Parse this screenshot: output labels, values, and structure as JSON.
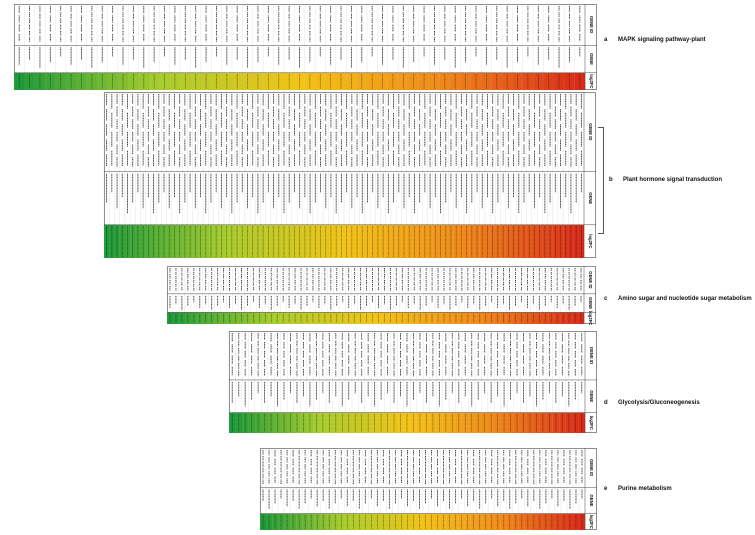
{
  "chart_data": [
    {
      "type": "heatmap",
      "panel_letter": "a",
      "title": "MAPK signaling pathway-plant",
      "columns": [
        "GENE ID",
        "GENE",
        "log2FC"
      ],
      "rows": 55,
      "colorscale": [
        "#1f9a3a",
        "#a8cc2e",
        "#f2c418",
        "#f08a1c",
        "#d92b1a"
      ],
      "log2fc_range": [
        0.2,
        3.0
      ]
    },
    {
      "type": "heatmap",
      "panel_letter": "b",
      "title": "Plant hormone signal transduction",
      "columns": [
        "GENE ID",
        "GENE",
        "log2FC"
      ],
      "rows": 92,
      "colorscale": [
        "#1f9a3a",
        "#a8cc2e",
        "#f2c418",
        "#f08a1c",
        "#d92b1a"
      ],
      "log2fc_range": [
        0.2,
        3.2
      ]
    },
    {
      "type": "heatmap",
      "panel_letter": "c",
      "title": "Amino sugar and nucleotide sugar metabolism",
      "columns": [
        "GENE ID",
        "GENE",
        "log2FC"
      ],
      "rows": 70,
      "colorscale": [
        "#1f9a3a",
        "#a8cc2e",
        "#f2c418",
        "#f08a1c",
        "#d92b1a"
      ],
      "log2fc_range": [
        0.2,
        3.1
      ]
    },
    {
      "type": "heatmap",
      "panel_letter": "d",
      "title": "Glycolysis/Gluconeogenesis",
      "columns": [
        "GENE ID",
        "GENE",
        "log2FC"
      ],
      "rows": 55,
      "colorscale": [
        "#1f9a3a",
        "#a8cc2e",
        "#f2c418",
        "#f08a1c",
        "#d92b1a"
      ],
      "log2fc_range": [
        0.2,
        3.0
      ]
    },
    {
      "type": "heatmap",
      "panel_letter": "e",
      "title": "Purine metabolism",
      "columns": [
        "GENE ID",
        "GENE",
        "log2FC"
      ],
      "rows": 54,
      "colorscale": [
        "#1f9a3a",
        "#a8cc2e",
        "#f2c418",
        "#f08a1c",
        "#d92b1a"
      ],
      "log2fc_range": [
        0.2,
        3.0
      ]
    }
  ]
}
